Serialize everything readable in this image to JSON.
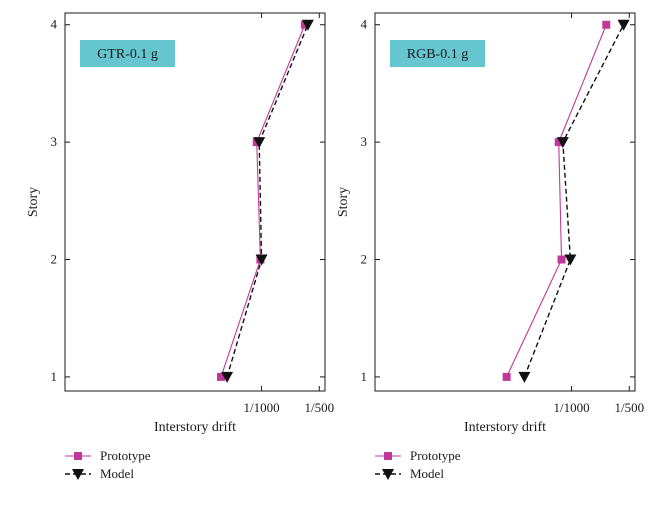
{
  "chart_data": [
    {
      "type": "line",
      "panel_label": "GTR-0.1 g",
      "xlabel": "Interstory drift",
      "ylabel": "Story",
      "xscale": "reciprocal",
      "xticks": [
        {
          "value": 0.001,
          "label": "1/1000"
        },
        {
          "value": 0.002,
          "label": "1/500"
        }
      ],
      "xlim": [
        0.00037,
        0.00222
      ],
      "yticks": [
        1,
        2,
        3,
        4
      ],
      "ylim": [
        0.88,
        4.1
      ],
      "grid": false,
      "series": [
        {
          "name": "Prototype",
          "marker": "square",
          "color": "#c0399a",
          "dash": "solid",
          "x": [
            0.00074,
            0.00099,
            0.00096,
            0.0016
          ],
          "y": [
            1,
            2,
            3,
            4
          ]
        },
        {
          "name": "Model",
          "marker": "triangle-down",
          "color": "#111111",
          "dash": "dashed",
          "x": [
            0.00077,
            0.001,
            0.00098,
            0.00167
          ],
          "y": [
            1,
            2,
            3,
            4
          ]
        }
      ]
    },
    {
      "type": "line",
      "panel_label": "RGB-0.1 g",
      "xlabel": "Interstory drift",
      "ylabel": "Story",
      "xscale": "reciprocal",
      "xticks": [
        {
          "value": 0.001,
          "label": "1/1000"
        },
        {
          "value": 0.002,
          "label": "1/500"
        }
      ],
      "xlim": [
        0.00037,
        0.00222
      ],
      "yticks": [
        1,
        2,
        3,
        4
      ],
      "ylim": [
        0.88,
        4.1
      ],
      "grid": false,
      "series": [
        {
          "name": "Prototype",
          "marker": "square",
          "color": "#c0399a",
          "dash": "solid",
          "x": [
            0.00064,
            0.00092,
            0.0009,
            0.00143
          ],
          "y": [
            1,
            2,
            3,
            4
          ]
        },
        {
          "name": "Model",
          "marker": "triangle-down",
          "color": "#111111",
          "dash": "dashed",
          "x": [
            0.00071,
            0.00099,
            0.00093,
            0.00182
          ],
          "y": [
            1,
            2,
            3,
            4
          ]
        }
      ]
    }
  ],
  "legend": [
    {
      "label": "Prototype"
    },
    {
      "label": "Model"
    }
  ],
  "colors": {
    "panel_label_bg": "#66c6cf",
    "prototype": "#c0399a",
    "model": "#111111"
  }
}
